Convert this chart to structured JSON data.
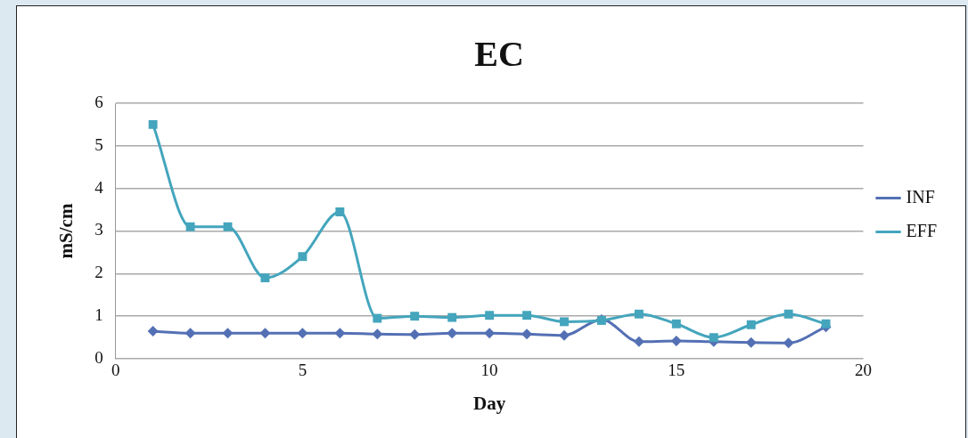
{
  "chart_data": {
    "type": "line",
    "title": "EC",
    "xlabel": "Day",
    "ylabel": "mS/cm",
    "x": [
      1,
      2,
      3,
      4,
      5,
      6,
      7,
      8,
      9,
      10,
      11,
      12,
      13,
      14,
      15,
      16,
      17,
      18,
      19
    ],
    "series": [
      {
        "name": "INF",
        "color": "#5470b4",
        "marker": "diamond",
        "values": [
          0.65,
          0.6,
          0.6,
          0.6,
          0.6,
          0.6,
          0.58,
          0.57,
          0.6,
          0.6,
          0.58,
          0.55,
          0.92,
          0.4,
          0.42,
          0.4,
          0.38,
          0.37,
          0.75
        ]
      },
      {
        "name": "EFF",
        "color": "#44a5bd",
        "marker": "square",
        "values": [
          5.5,
          3.1,
          3.1,
          1.9,
          2.4,
          3.45,
          0.95,
          1.0,
          0.97,
          1.02,
          1.02,
          0.87,
          0.9,
          1.05,
          0.82,
          0.5,
          0.8,
          1.05,
          0.82
        ]
      }
    ],
    "xlim": [
      0,
      20
    ],
    "xticks": [
      0,
      5,
      10,
      15,
      20
    ],
    "ylim": [
      0,
      6
    ],
    "yticks": [
      0,
      1,
      2,
      3,
      4,
      5,
      6
    ],
    "grid": "y",
    "legend": "right"
  }
}
